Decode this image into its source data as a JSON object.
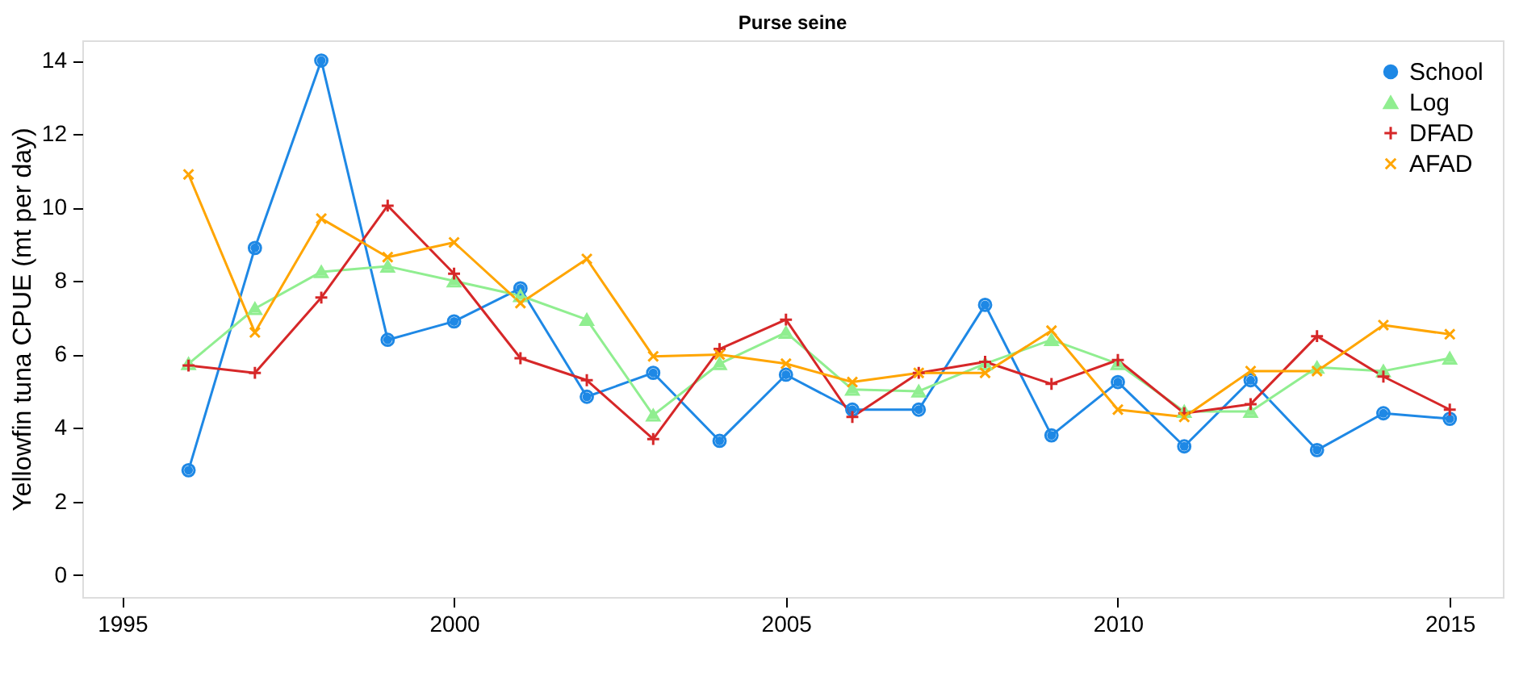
{
  "chart_data": {
    "type": "line",
    "title": "Purse seine",
    "ylabel": "Yellowfin tuna CPUE (mt per day)",
    "x": [
      1996,
      1997,
      1998,
      1999,
      2000,
      2001,
      2002,
      2003,
      2004,
      2005,
      2006,
      2007,
      2008,
      2009,
      2010,
      2011,
      2012,
      2013,
      2014,
      2015
    ],
    "series": [
      {
        "name": "School",
        "color": "#1e88e5",
        "marker": "circle",
        "values": [
          2.85,
          8.9,
          14.0,
          6.4,
          6.9,
          7.8,
          4.85,
          5.5,
          3.65,
          5.45,
          4.5,
          4.5,
          7.35,
          3.8,
          5.25,
          3.5,
          5.3,
          3.4,
          4.4,
          4.25
        ]
      },
      {
        "name": "Log",
        "color": "#90ee90",
        "marker": "triangle",
        "values": [
          5.75,
          7.25,
          8.25,
          8.4,
          8.0,
          7.6,
          6.95,
          4.35,
          5.75,
          6.6,
          5.05,
          5.0,
          5.75,
          6.4,
          5.75,
          4.45,
          4.45,
          5.65,
          5.55,
          5.9
        ]
      },
      {
        "name": "DFAD",
        "color": "#d62728",
        "marker": "cross",
        "values": [
          5.7,
          5.5,
          7.55,
          10.05,
          8.2,
          5.9,
          5.3,
          3.7,
          6.15,
          6.95,
          4.3,
          5.5,
          5.8,
          5.2,
          5.85,
          4.4,
          4.65,
          6.5,
          5.4,
          4.5
        ]
      },
      {
        "name": "AFAD",
        "color": "#ffa500",
        "marker": "x",
        "values": [
          10.9,
          6.6,
          9.7,
          8.65,
          9.05,
          7.4,
          8.6,
          5.95,
          6.0,
          5.75,
          5.25,
          5.5,
          5.5,
          6.65,
          4.5,
          4.3,
          5.55,
          5.55,
          6.8,
          6.55
        ]
      }
    ],
    "xlim": [
      1994.4,
      2015.8
    ],
    "xticks": [
      1995,
      2000,
      2005,
      2010,
      2015
    ],
    "ylim": [
      -0.6,
      14.55
    ],
    "yticks": [
      0,
      2,
      4,
      6,
      8,
      10,
      12,
      14
    ],
    "legend": "top right",
    "grid": false,
    "line_style": "solid"
  }
}
